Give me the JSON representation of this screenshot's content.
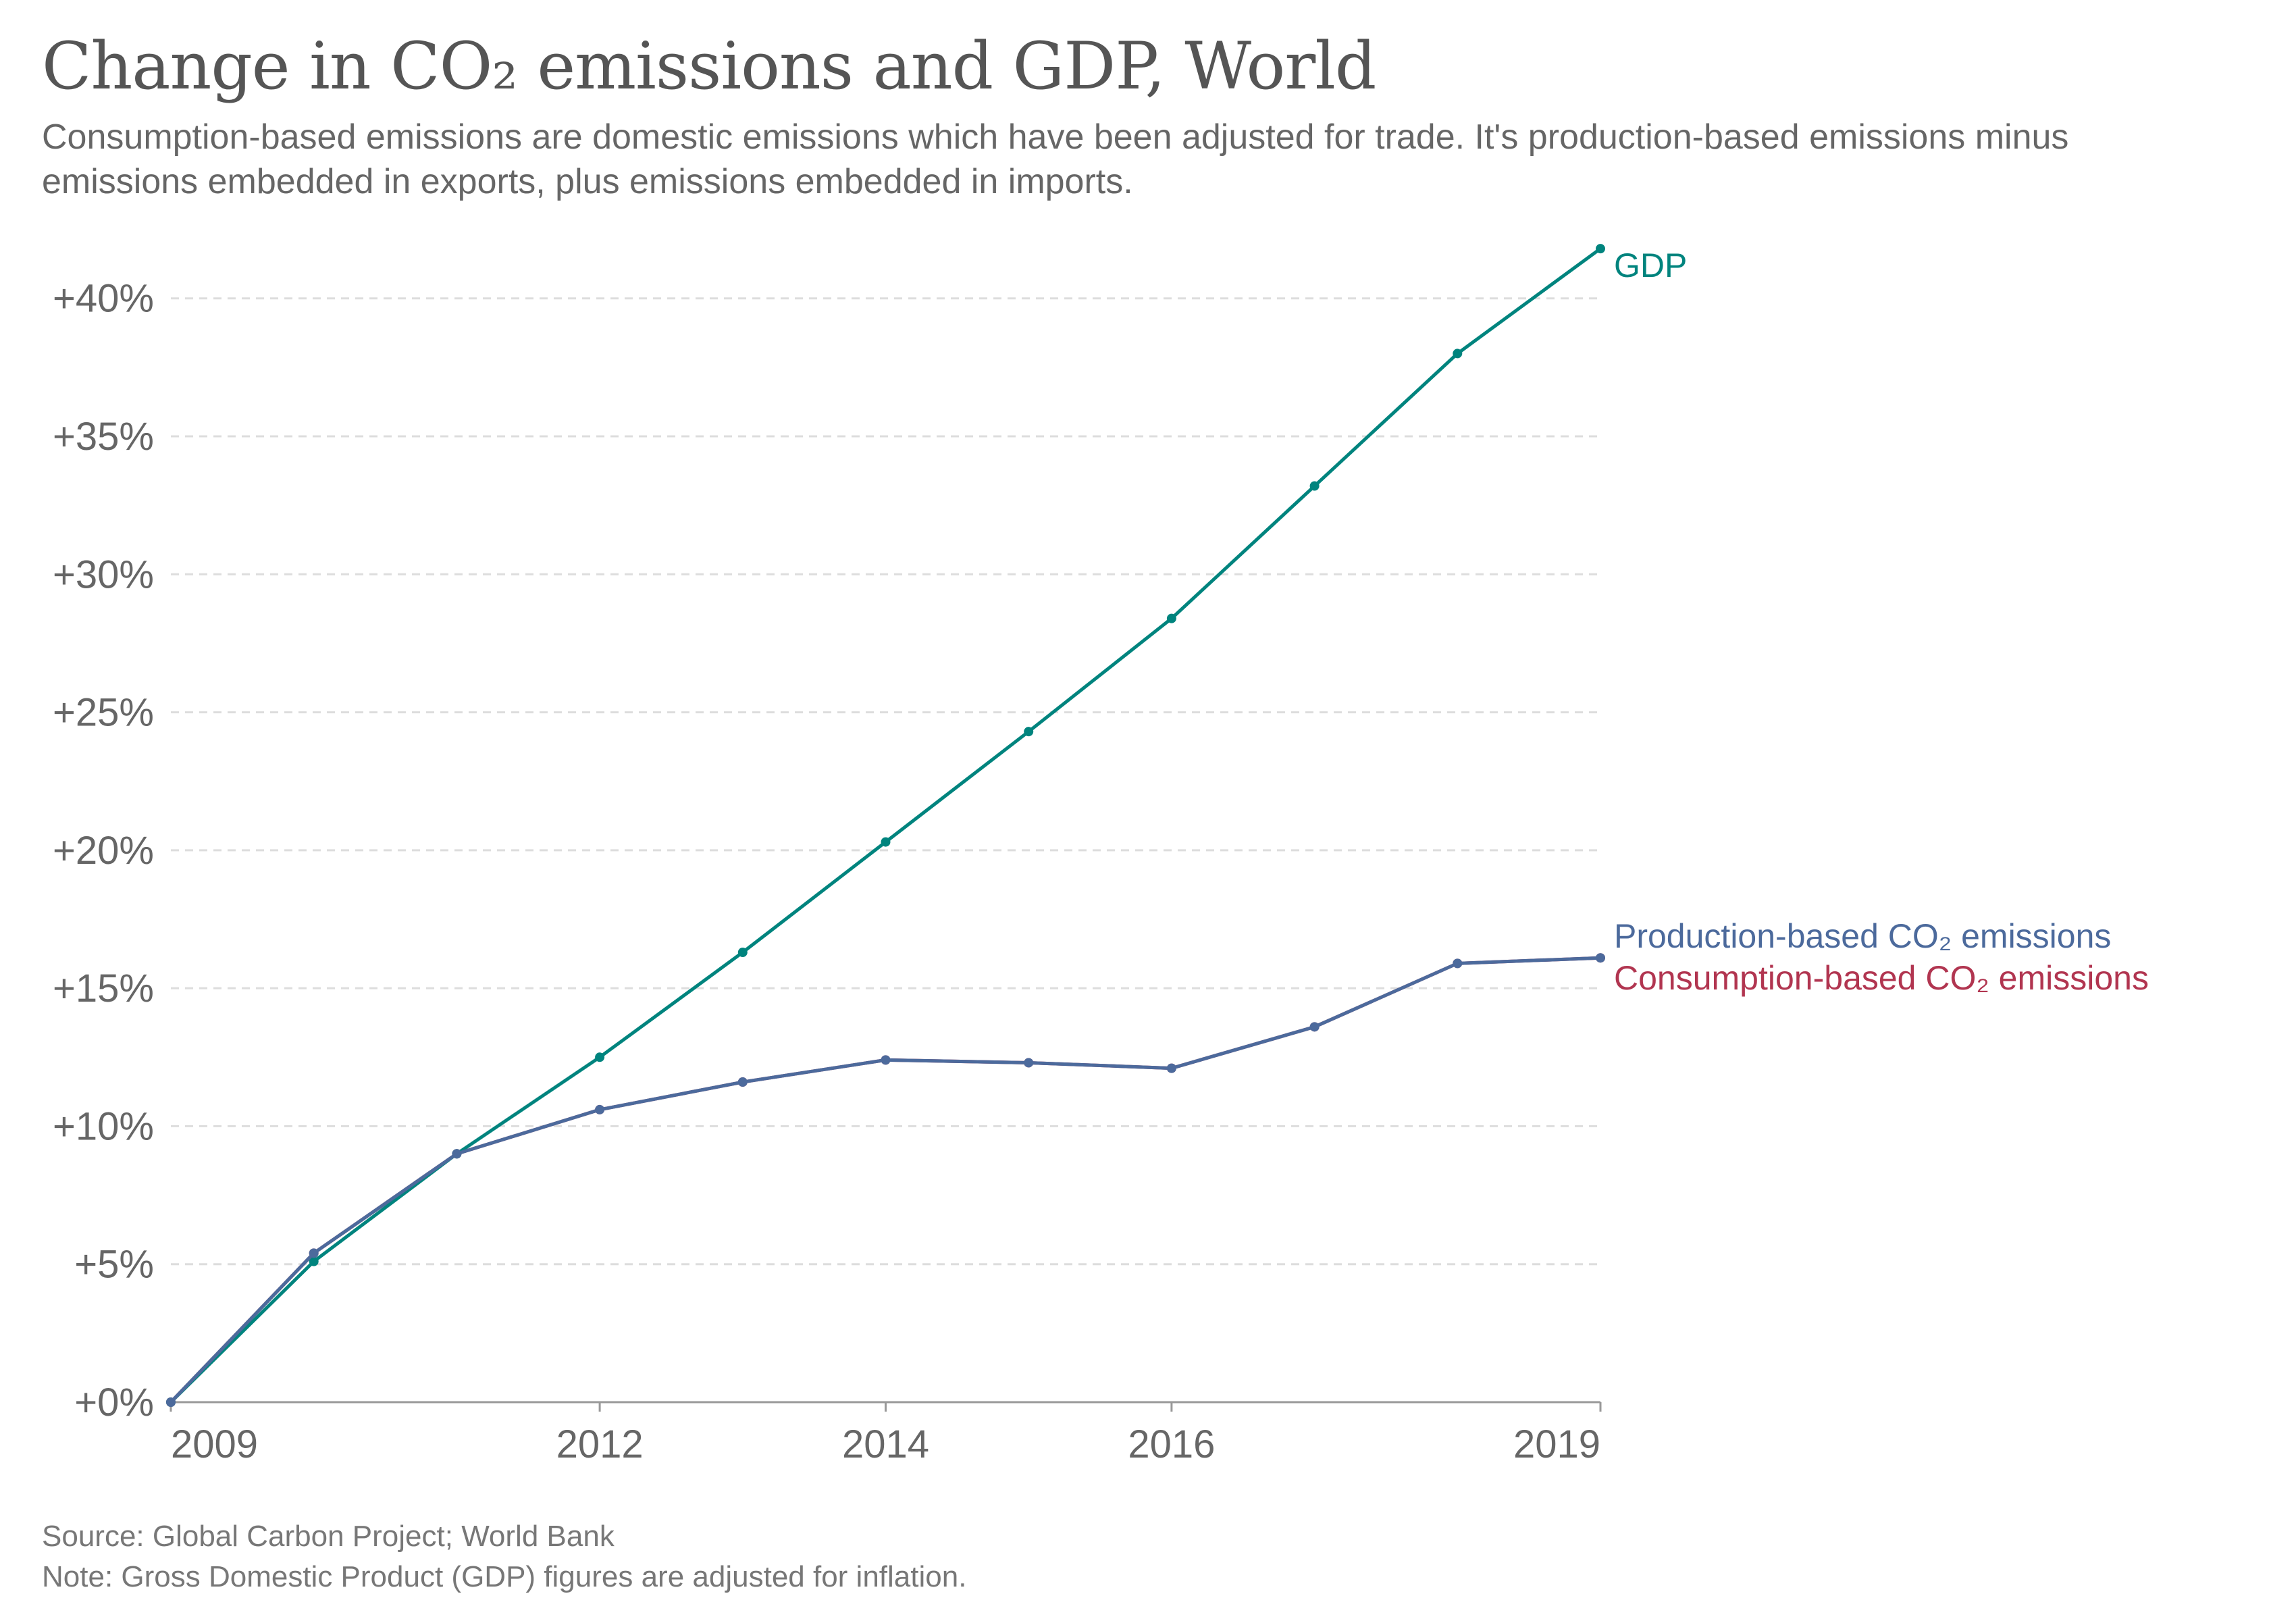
{
  "title": "Change in CO₂ emissions and GDP, World",
  "subtitle": "Consumption-based emissions are domestic emissions which have been adjusted for trade. It's production-based emissions minus emissions embedded in exports, plus emissions embedded in imports.",
  "source": "Source: Global Carbon Project; World Bank",
  "note": "Note: Gross Domestic Product (GDP) figures are adjusted for inflation.",
  "colors": {
    "gdp": "#00847e",
    "production": "#4c6a9c",
    "consumption": "#b13550",
    "grid": "#dddddd",
    "axis": "#999999",
    "text": "#666666"
  },
  "chart_data": {
    "type": "line",
    "x": [
      2009,
      2010,
      2011,
      2012,
      2013,
      2014,
      2015,
      2016,
      2017,
      2018,
      2019
    ],
    "xticks": [
      2009,
      2012,
      2014,
      2016,
      2019
    ],
    "xtick_labels": [
      "2009",
      "2012",
      "2014",
      "2016",
      "2019"
    ],
    "yticks": [
      0,
      5,
      10,
      15,
      20,
      25,
      30,
      35,
      40
    ],
    "ytick_labels": [
      "+0%",
      "+5%",
      "+10%",
      "+15%",
      "+20%",
      "+25%",
      "+30%",
      "+35%",
      "+40%"
    ],
    "xlim": [
      2009,
      2019
    ],
    "ylim": [
      0,
      42
    ],
    "grid": true,
    "series": [
      {
        "name": "GDP",
        "color_key": "gdp",
        "values": [
          0,
          5.1,
          9.0,
          12.5,
          16.3,
          20.3,
          24.3,
          28.4,
          33.2,
          38.0,
          41.8
        ]
      },
      {
        "name": "Production-based CO₂ emissions",
        "color_key": "production",
        "values": [
          0,
          5.4,
          9.0,
          10.6,
          11.6,
          12.4,
          12.3,
          12.1,
          13.6,
          15.9,
          16.1
        ]
      },
      {
        "name": "Consumption-based CO₂ emissions",
        "color_key": "consumption",
        "values": [
          0,
          5.4,
          9.0,
          10.6,
          11.6,
          12.4,
          12.3,
          12.1,
          13.6,
          15.9,
          16.1
        ]
      }
    ]
  }
}
